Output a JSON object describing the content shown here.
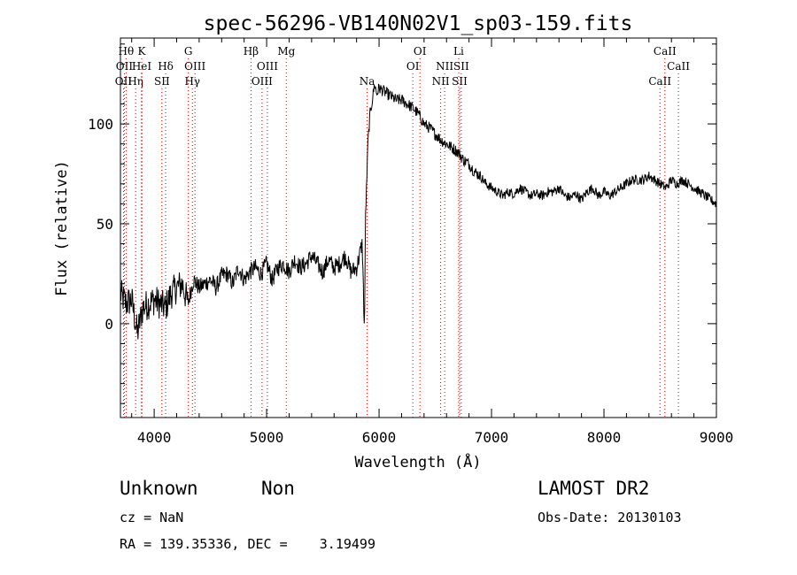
{
  "chart_data": {
    "type": "line",
    "title": "spec-56296-VB140N02V1_sp03-159.fits",
    "xlabel": "Wavelength (Å)",
    "ylabel": "Flux (relative)",
    "xlim": [
      3700,
      9000
    ],
    "ylim": [
      -47,
      143
    ],
    "xticks": [
      4000,
      5000,
      6000,
      7000,
      8000,
      9000
    ],
    "yticks": [
      0,
      50,
      100
    ],
    "line_color": "#000000",
    "marker_color": "#cc0000",
    "series": [
      {
        "values_x": [
          3700,
          3750,
          3800,
          3850,
          3900,
          3950,
          4000,
          4050,
          4100,
          4150,
          4200,
          4250,
          4300,
          4350,
          4400,
          4450,
          4500,
          4550,
          4600,
          4650,
          4700,
          4750,
          4800,
          4850,
          4900,
          4950,
          5000,
          5050,
          5100,
          5150,
          5200,
          5250,
          5300,
          5350,
          5400,
          5450,
          5500,
          5550,
          5600,
          5650,
          5700,
          5750,
          5800,
          5850,
          5870,
          5880,
          5890,
          5900,
          5920,
          5940,
          5960,
          5980,
          6000,
          6050,
          6100,
          6150,
          6200,
          6250,
          6300,
          6350,
          6400,
          6450,
          6500,
          6550,
          6600,
          6650,
          6700,
          6750,
          6800,
          6850,
          6900,
          6950,
          7000,
          7050,
          7100,
          7150,
          7200,
          7250,
          7300,
          7350,
          7400,
          7450,
          7500,
          7550,
          7600,
          7650,
          7700,
          7750,
          7800,
          7850,
          7900,
          7950,
          8000,
          8050,
          8100,
          8150,
          8200,
          8250,
          8300,
          8350,
          8400,
          8450,
          8500,
          8550,
          8600,
          8650,
          8700,
          8750,
          8800,
          8850,
          8900,
          8950,
          9000
        ],
        "values_y": [
          15,
          10,
          12,
          -5,
          8,
          10,
          12,
          10,
          8,
          15,
          18,
          20,
          10,
          22,
          18,
          20,
          22,
          18,
          24,
          25,
          20,
          28,
          22,
          26,
          28,
          25,
          30,
          22,
          28,
          30,
          26,
          32,
          28,
          30,
          34,
          30,
          26,
          32,
          28,
          30,
          34,
          26,
          28,
          40,
          -5,
          55,
          70,
          90,
          105,
          112,
          120,
          115,
          118,
          116,
          114,
          112,
          112,
          110,
          108,
          105,
          100,
          98,
          95,
          92,
          90,
          88,
          86,
          82,
          80,
          76,
          74,
          70,
          68,
          66,
          64,
          66,
          65,
          68,
          66,
          64,
          65,
          64,
          66,
          66,
          68,
          64,
          63,
          65,
          62,
          66,
          68,
          64,
          66,
          64,
          66,
          68,
          70,
          72,
          72,
          72,
          74,
          72,
          70,
          68,
          72,
          70,
          72,
          70,
          68,
          66,
          64,
          62,
          60
        ]
      }
    ],
    "line_markers": [
      {
        "x": 3750,
        "row": 1,
        "text": "Hθ"
      },
      {
        "x": 3735,
        "row": 2,
        "text": "OII"
      },
      {
        "x": 3727,
        "row": 3,
        "text": "OII"
      },
      {
        "x": 3835,
        "row": 3,
        "text": "Hη"
      },
      {
        "x": 3889,
        "row": 1,
        "text": "K"
      },
      {
        "x": 3889,
        "row": 2,
        "text": "HeI"
      },
      {
        "x": 4102,
        "row": 2,
        "text": "Hδ"
      },
      {
        "x": 4069,
        "row": 3,
        "text": "SII"
      },
      {
        "x": 4304,
        "row": 1,
        "text": "G"
      },
      {
        "x": 4363,
        "row": 2,
        "text": "OIII"
      },
      {
        "x": 4340,
        "row": 3,
        "text": "Hγ"
      },
      {
        "x": 4861,
        "row": 1,
        "text": "Hβ"
      },
      {
        "x": 5007,
        "row": 2,
        "text": "OIII"
      },
      {
        "x": 4959,
        "row": 3,
        "text": "OIII"
      },
      {
        "x": 5175,
        "row": 1,
        "text": "Mg"
      },
      {
        "x": 5894,
        "row": 3,
        "text": "Na"
      },
      {
        "x": 6363,
        "row": 1,
        "text": "OI"
      },
      {
        "x": 6300,
        "row": 2,
        "text": "OI"
      },
      {
        "x": 6583,
        "row": 2,
        "text": "NII"
      },
      {
        "x": 6548,
        "row": 3,
        "text": "NII"
      },
      {
        "x": 6708,
        "row": 1,
        "text": "Li"
      },
      {
        "x": 6731,
        "row": 2,
        "text": "SII"
      },
      {
        "x": 6716,
        "row": 3,
        "text": "SII"
      },
      {
        "x": 8542,
        "row": 1,
        "text": "CaII"
      },
      {
        "x": 8662,
        "row": 2,
        "text": "CaII"
      },
      {
        "x": 8498,
        "row": 3,
        "text": "CaII"
      }
    ]
  },
  "info": {
    "class": "Unknown",
    "subclass": "Non",
    "survey": "LAMOST DR2",
    "redshift": "cz = NaN",
    "obs_date": "Obs-Date: 20130103",
    "coords": "RA = 139.35336, DEC =    3.19499"
  }
}
